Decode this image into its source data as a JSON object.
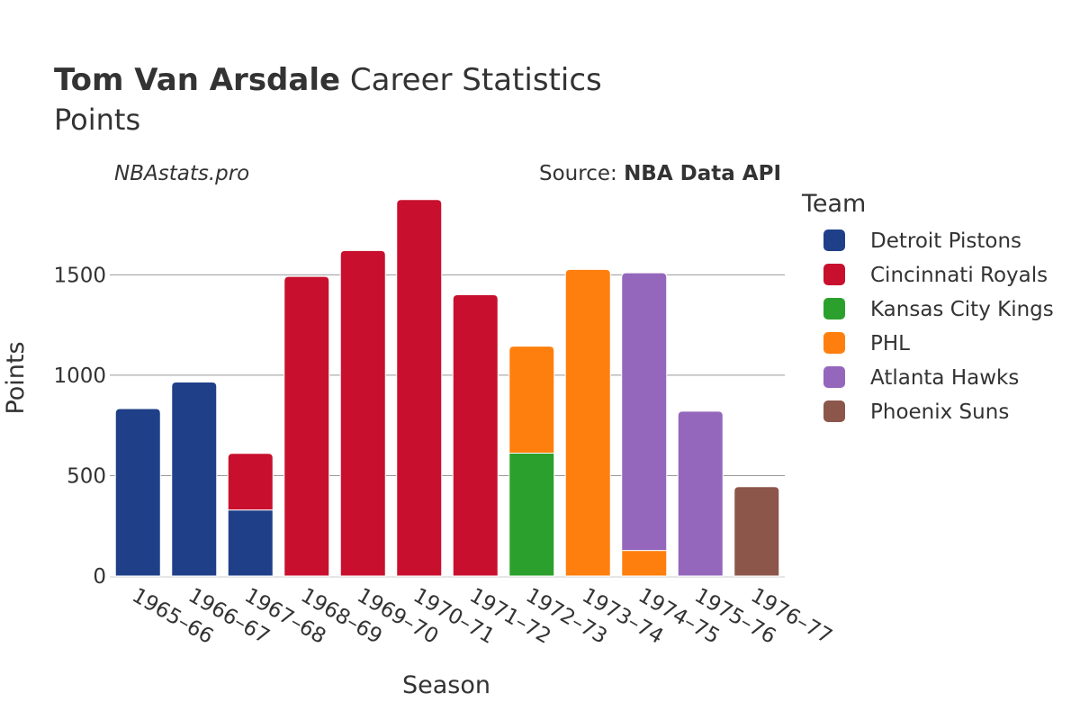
{
  "chart_data": {
    "type": "bar",
    "stacked": true,
    "title_bold": "Tom Van Arsdale",
    "title_rest": " Career Statistics",
    "subtitle": "Points",
    "credit": "NBAstats.pro",
    "source_prefix": "Source: ",
    "source_name": "NBA Data API",
    "xlabel": "Season",
    "ylabel": "Points",
    "ylim": [
      0,
      1950
    ],
    "yticks": [
      0,
      500,
      1000,
      1500
    ],
    "categories": [
      "1965–66",
      "1966–67",
      "1967–68",
      "1968–69",
      "1969–70",
      "1970–71",
      "1971–72",
      "1972–73",
      "1973–74",
      "1974–75",
      "1975–76",
      "1976–77"
    ],
    "legend_title": "Team",
    "legend_position": "right",
    "series": [
      {
        "name": "Detroit Pistons",
        "color": "#1f4088",
        "values": [
          834,
          966,
          329,
          0,
          0,
          0,
          0,
          0,
          0,
          0,
          0,
          0
        ]
      },
      {
        "name": "Cincinnati Royals",
        "color": "#c8102e",
        "values": [
          0,
          0,
          282,
          1492,
          1621,
          1875,
          1401,
          0,
          0,
          0,
          0,
          0
        ]
      },
      {
        "name": "Kansas City Kings",
        "color": "#2ca02c",
        "values": [
          0,
          0,
          0,
          0,
          0,
          0,
          0,
          612,
          0,
          0,
          0,
          0
        ]
      },
      {
        "name": "PHL",
        "color": "#ff7f0e",
        "values": [
          0,
          0,
          0,
          0,
          0,
          0,
          0,
          533,
          1527,
          127,
          0,
          0
        ]
      },
      {
        "name": "Atlanta Hawks",
        "color": "#9467bd",
        "values": [
          0,
          0,
          0,
          0,
          0,
          0,
          0,
          0,
          0,
          1383,
          821,
          0
        ]
      },
      {
        "name": "Phoenix Suns",
        "color": "#8c564b",
        "values": [
          0,
          0,
          0,
          0,
          0,
          0,
          0,
          0,
          0,
          0,
          0,
          445
        ]
      }
    ],
    "grid": true
  }
}
